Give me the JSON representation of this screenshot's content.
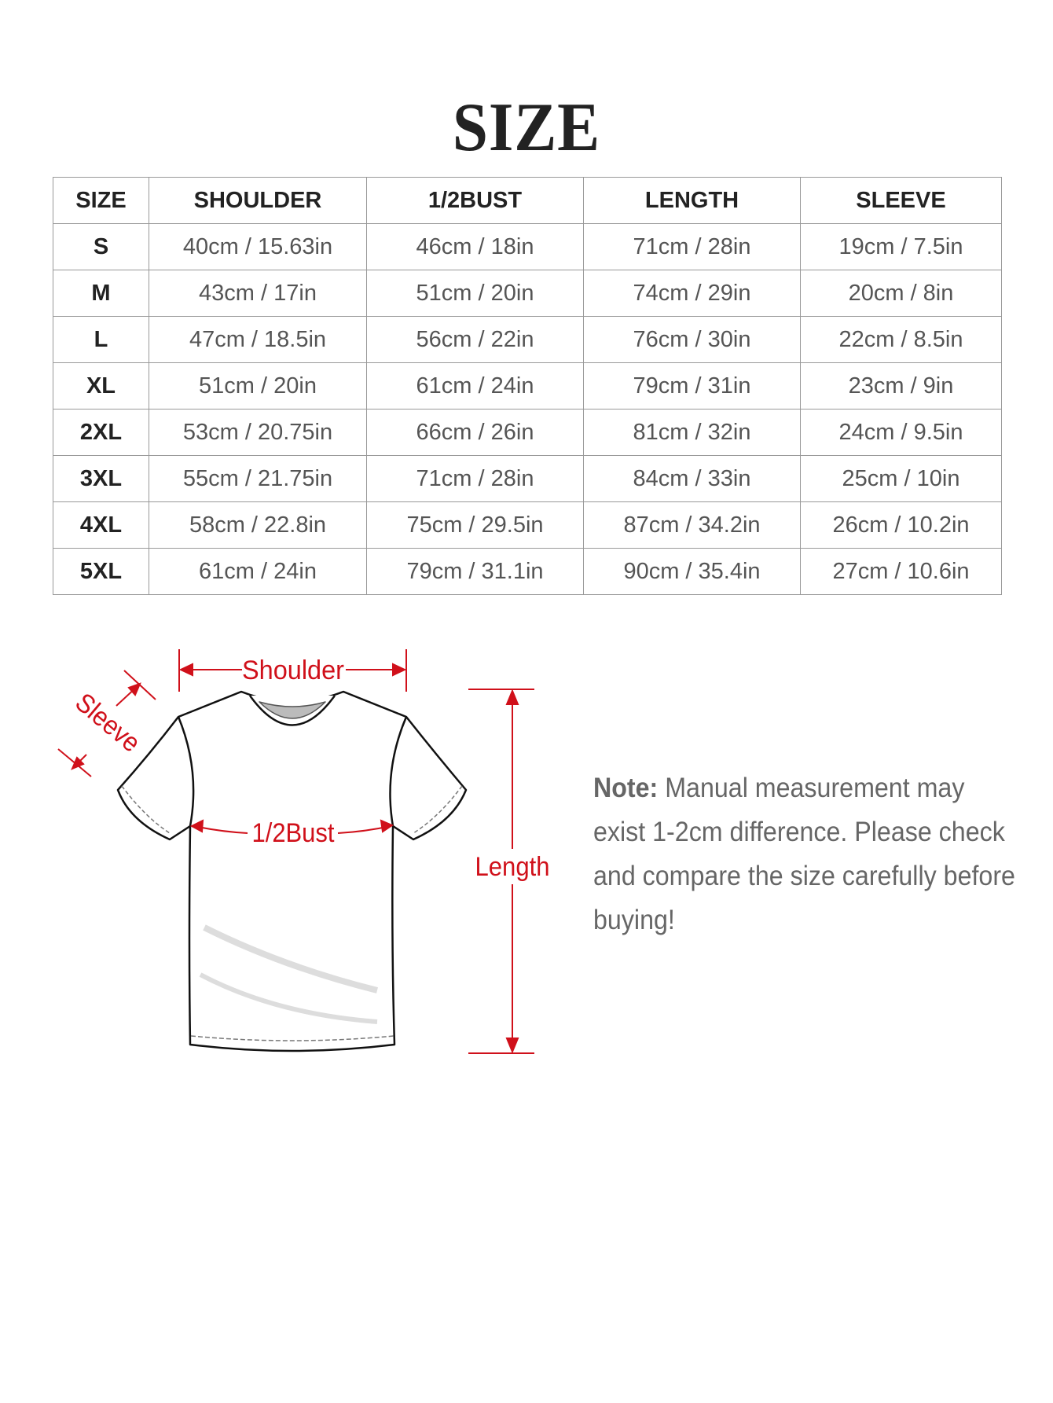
{
  "title": "SIZE",
  "table": {
    "headers": [
      "SIZE",
      "SHOULDER",
      "1/2BUST",
      "LENGTH",
      "SLEEVE"
    ],
    "rows": [
      [
        "S",
        "40cm / 15.63in",
        "46cm / 18in",
        "71cm / 28in",
        "19cm / 7.5in"
      ],
      [
        "M",
        "43cm / 17in",
        "51cm / 20in",
        "74cm / 29in",
        "20cm / 8in"
      ],
      [
        "L",
        "47cm / 18.5in",
        "56cm / 22in",
        "76cm / 30in",
        "22cm / 8.5in"
      ],
      [
        "XL",
        "51cm / 20in",
        "61cm / 24in",
        "79cm / 31in",
        "23cm / 9in"
      ],
      [
        "2XL",
        "53cm / 20.75in",
        "66cm / 26in",
        "81cm / 32in",
        "24cm / 9.5in"
      ],
      [
        "3XL",
        "55cm / 21.75in",
        "71cm / 28in",
        "84cm / 33in",
        "25cm / 10in"
      ],
      [
        "4XL",
        "58cm / 22.8in",
        "75cm / 29.5in",
        "87cm / 34.2in",
        "26cm / 10.2in"
      ],
      [
        "5XL",
        "61cm / 24in",
        "79cm / 31.1in",
        "90cm / 35.4in",
        "27cm / 10.6in"
      ]
    ]
  },
  "diagram": {
    "shoulder_label": "Shoulder",
    "sleeve_label": "Sleeve",
    "bust_label": "1/2Bust",
    "length_label": "Length",
    "accent_color": "#d0101a"
  },
  "note": {
    "label": "Note:",
    "text": "Manual measurement may exist 1-2cm difference. Please check and compare the size carefully before buying!"
  }
}
